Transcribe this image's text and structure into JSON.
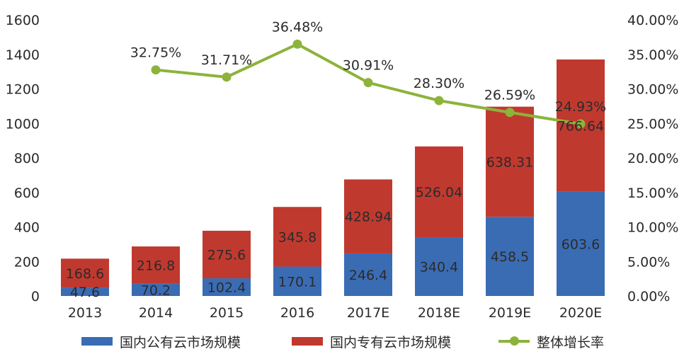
{
  "chart_data": {
    "type": "bar",
    "stacked": true,
    "categories": [
      "2013",
      "2014",
      "2015",
      "2016",
      "2017E",
      "2018E",
      "2019E",
      "2020E"
    ],
    "series": [
      {
        "name": "国内公有云市场规模",
        "type": "bar",
        "axis": "left",
        "color": "#3a6cb4",
        "values": [
          47.6,
          70.2,
          102.4,
          170.1,
          246.4,
          340.4,
          458.5,
          603.6
        ],
        "labels": [
          "47.6",
          "70.2",
          "102.4",
          "170.1",
          "246.4",
          "340.4",
          "458.5",
          "603.6"
        ]
      },
      {
        "name": "国内专有云市场规模",
        "type": "bar",
        "axis": "left",
        "color": "#c0392f",
        "values": [
          168.6,
          216.8,
          275.6,
          345.8,
          428.94,
          526.04,
          638.31,
          766.64
        ],
        "labels": [
          "168.6",
          "216.8",
          "275.6",
          "345.8",
          "428.94",
          "526.04",
          "638.31",
          "766.64"
        ]
      },
      {
        "name": "整体增长率",
        "type": "line",
        "axis": "right",
        "color": "#8db33b",
        "values": [
          null,
          32.75,
          31.71,
          36.48,
          30.91,
          28.3,
          26.59,
          24.93
        ],
        "labels": [
          "",
          "32.75%",
          "31.71%",
          "36.48%",
          "30.91%",
          "28.30%",
          "26.59%",
          "24.93%"
        ]
      }
    ],
    "y_left": {
      "min": 0,
      "max": 1600,
      "ticks": [
        "0",
        "200",
        "400",
        "600",
        "800",
        "1000",
        "1200",
        "1400",
        "1600"
      ]
    },
    "y_right": {
      "min": 0,
      "max": 40,
      "ticks": [
        "0.00%",
        "5.00%",
        "10.00%",
        "15.00%",
        "20.00%",
        "25.00%",
        "30.00%",
        "35.00%",
        "40.00%"
      ]
    },
    "title": "",
    "xlabel": "",
    "ylabel": "",
    "grid": false,
    "legend_position": "bottom"
  }
}
